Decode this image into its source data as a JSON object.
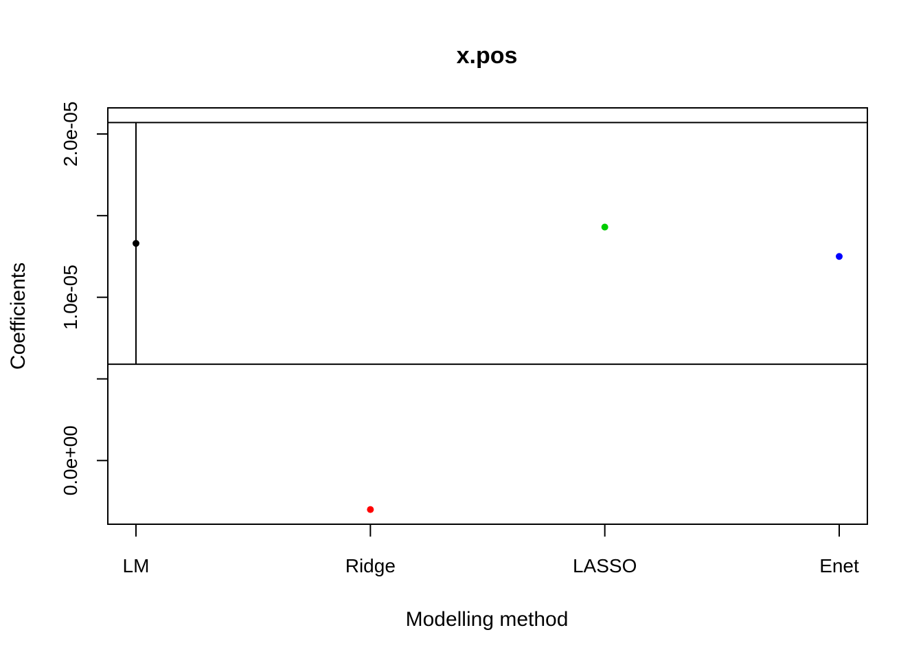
{
  "chart_data": {
    "type": "scatter",
    "title": "x.pos",
    "xlabel": "Modelling method",
    "ylabel": "Coefficients",
    "categories": [
      "LM",
      "Ridge",
      "LASSO",
      "Enet"
    ],
    "values": [
      1.33e-05,
      -3e-06,
      1.43e-05,
      1.25e-05
    ],
    "colors": [
      "#000000",
      "#ff0000",
      "#00cd00",
      "#0000ff"
    ],
    "error_bars": [
      {
        "category": "LM",
        "low": 5.9e-06,
        "high": 2.07e-05
      }
    ],
    "reference_lines": [
      2.07e-05,
      5.9e-06
    ],
    "ylim": [
      -3.9e-06,
      2.16e-05
    ],
    "y_ticks": [
      0,
      5e-06,
      1e-05,
      1.5e-05,
      2e-05
    ],
    "y_tick_labels": [
      "0.0e+00",
      "",
      "1.0e-05",
      "",
      "2.0e-05"
    ],
    "grid": false,
    "legend": "none"
  }
}
